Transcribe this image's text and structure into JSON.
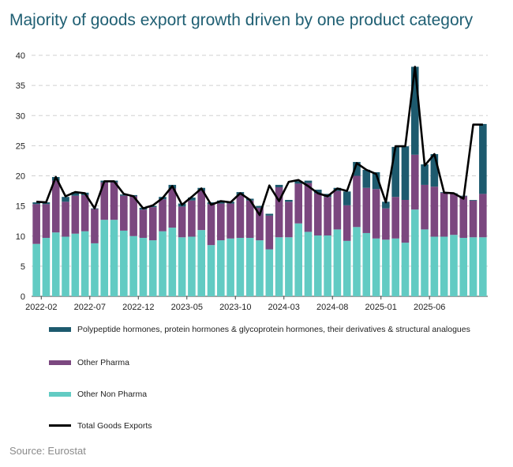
{
  "title": "Majority of goods export growth driven by one product category",
  "source": "Source: Eurostat",
  "colors": {
    "polypeptide": "#1d5a6e",
    "other_pharma": "#7b477f",
    "other_non_pharma": "#62cbc3",
    "total": "#000000",
    "grid": "#d0d0d0"
  },
  "chart_data": {
    "type": "bar",
    "stacked": true,
    "title": "Majority of goods export growth driven by one product category",
    "ylim": [
      0,
      40
    ],
    "yticks": [
      0,
      5,
      10,
      15,
      20,
      25,
      30,
      35,
      40
    ],
    "categories": [
      "2022-01",
      "2022-02",
      "2022-03",
      "2022-04",
      "2022-05",
      "2022-06",
      "2022-07",
      "2022-08",
      "2022-09",
      "2022-10",
      "2022-11",
      "2022-12",
      "2023-01",
      "2023-02",
      "2023-03",
      "2023-04",
      "2023-05",
      "2023-06",
      "2023-07",
      "2023-08",
      "2023-09",
      "2023-10",
      "2023-11",
      "2023-12",
      "2024-01",
      "2024-02",
      "2024-03",
      "2024-04",
      "2024-05",
      "2024-06",
      "2024-07",
      "2024-08",
      "2024-09",
      "2024-10",
      "2024-11",
      "2024-12",
      "2025-01",
      "2025-02",
      "2025-03",
      "2025-04",
      "2025-05",
      "2025-06",
      "2025-07",
      "2025-08",
      "2025-09",
      "2025-10",
      "2025-11"
    ],
    "x_tick_labels": [
      "2022-02",
      "2022-07",
      "2022-12",
      "2023-05",
      "2023-10",
      "2024-03",
      "2024-08",
      "2025-01",
      "2025-06"
    ],
    "series": [
      {
        "name": "Other Non Pharma",
        "key": "other_non_pharma",
        "values": [
          8.7,
          9.7,
          10.6,
          9.9,
          10.4,
          10.8,
          8.8,
          12.7,
          12.7,
          10.9,
          10.0,
          9.7,
          9.3,
          10.8,
          11.4,
          9.8,
          9.9,
          11.0,
          8.5,
          9.3,
          9.6,
          9.7,
          9.7,
          9.3,
          7.8,
          9.8,
          9.8,
          12.1,
          10.7,
          10.1,
          10.1,
          11.1,
          9.2,
          11.5,
          10.5,
          9.6,
          9.4,
          9.6,
          8.9,
          14.4,
          11.1,
          9.9,
          9.9,
          10.2,
          9.7,
          9.8,
          9.8
        ]
      },
      {
        "name": "Other Pharma",
        "key": "other_pharma",
        "values": [
          6.6,
          5.6,
          8.6,
          5.8,
          6.3,
          6.0,
          5.7,
          6.2,
          6.2,
          5.8,
          6.6,
          4.7,
          5.5,
          5.3,
          6.5,
          5.1,
          6.0,
          6.5,
          6.8,
          6.1,
          5.8,
          7.1,
          6.2,
          5.4,
          5.6,
          8.3,
          5.9,
          6.6,
          8.1,
          7.0,
          6.4,
          6.4,
          5.9,
          8.5,
          7.5,
          8.2,
          5.2,
          6.9,
          7.1,
          9.1,
          7.4,
          8.3,
          7.3,
          6.8,
          6.9,
          6.1,
          7.2
        ]
      },
      {
        "name": "Polypeptide hormones, protein hormones & glycoprotein hormones, their derivatives & structural analogues",
        "key": "polypeptide",
        "values": [
          0.3,
          0.3,
          0.6,
          0.8,
          0.6,
          0.4,
          0.1,
          0.3,
          0.3,
          0.2,
          0.2,
          0.3,
          0.2,
          0.4,
          0.6,
          0.5,
          0.5,
          0.5,
          0.3,
          0.5,
          0.3,
          0.5,
          0.3,
          0.3,
          0.3,
          0.4,
          0.3,
          0.4,
          0.4,
          0.6,
          0.5,
          0.5,
          2.3,
          2.3,
          3.0,
          2.8,
          1.1,
          8.3,
          8.9,
          14.6,
          3.4,
          5.4,
          0.1,
          0.1,
          0.1,
          0.1,
          11.6
        ]
      },
      {
        "name": "Total Goods Exports",
        "key": "total",
        "type": "line",
        "values": [
          15.7,
          15.6,
          19.8,
          16.6,
          17.3,
          17.1,
          14.6,
          19.1,
          19.1,
          17.0,
          16.6,
          14.6,
          15.1,
          16.3,
          18.3,
          15.2,
          16.5,
          17.9,
          15.2,
          15.8,
          15.6,
          17.1,
          16.0,
          13.5,
          18.4,
          15.8,
          19.0,
          19.3,
          18.3,
          17.1,
          16.6,
          17.9,
          17.5,
          22.1,
          21.0,
          20.3,
          15.6,
          24.9,
          24.9,
          38.1,
          21.7,
          23.6,
          17.2,
          17.1,
          16.2,
          28.5,
          28.5
        ]
      }
    ],
    "legend_position": "below"
  },
  "legend": [
    {
      "label": "Polypeptide hormones, protein hormones & glycoprotein hormones, their derivatives & structural analogues",
      "color_key": "polypeptide",
      "kind": "bar"
    },
    {
      "label": "Other Pharma",
      "color_key": "other_pharma",
      "kind": "bar"
    },
    {
      "label": "Other Non Pharma",
      "color_key": "other_non_pharma",
      "kind": "bar"
    },
    {
      "label": "Total Goods Exports",
      "color_key": "total",
      "kind": "line"
    }
  ]
}
